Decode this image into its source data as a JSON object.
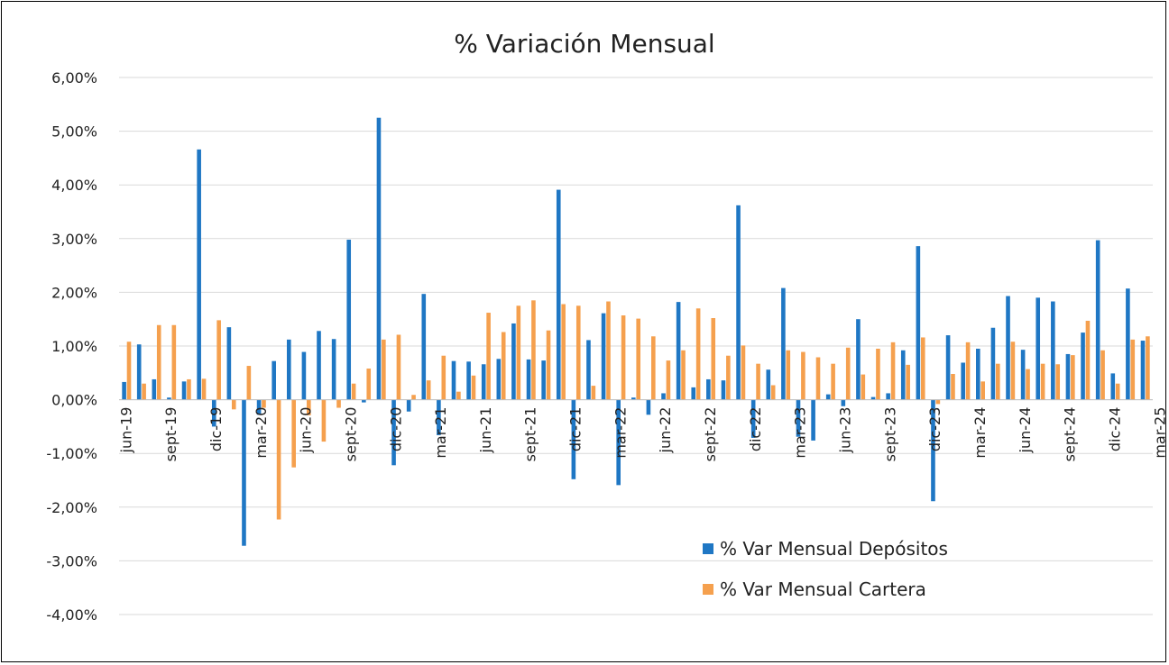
{
  "chart_data": {
    "type": "bar",
    "title": "% Variación Mensual",
    "xlabel": "",
    "ylabel": "",
    "ylim": [
      -4,
      6
    ],
    "yticks": [
      "6,00%",
      "5,00%",
      "4,00%",
      "3,00%",
      "2,00%",
      "1,00%",
      "0,00%",
      "-1,00%",
      "-2,00%",
      "-3,00%",
      "-4,00%"
    ],
    "xtick_labels": [
      "jun-19",
      "sept-19",
      "dic-19",
      "mar-20",
      "jun-20",
      "sept-20",
      "dic-20",
      "mar-21",
      "jun-21",
      "sept-21",
      "dic-21",
      "mar-22",
      "jun-22",
      "sept-22",
      "dic-22",
      "mar-23",
      "jun-23",
      "sept-23",
      "dic-23",
      "mar-24",
      "jun-24",
      "sept-24",
      "dic-24",
      "mar-25"
    ],
    "legend_position": "bottom-right",
    "grid": true,
    "colors": {
      "depositos": "#1f77c4",
      "cartera": "#f5a04e"
    },
    "series": [
      {
        "name": "% Var Mensual Depósitos",
        "values": [
          0.33,
          1.03,
          0.38,
          0.04,
          0.34,
          4.66,
          -0.5,
          1.35,
          -2.72,
          -0.28,
          0.72,
          1.12,
          0.89,
          1.28,
          1.13,
          2.98,
          -0.05,
          5.25,
          -1.22,
          -0.22,
          1.97,
          -0.66,
          0.72,
          0.71,
          0.66,
          0.76,
          1.42,
          0.75,
          0.73,
          3.91,
          -1.48,
          1.11,
          1.61,
          -1.59,
          0.04,
          -0.28,
          0.12,
          1.82,
          0.23,
          0.38,
          0.36,
          3.62,
          -0.71,
          0.56,
          2.08,
          -0.69,
          -0.76,
          0.1,
          -0.12,
          1.5,
          0.05,
          0.12,
          0.92,
          2.86,
          -1.89,
          1.2,
          0.69,
          0.95,
          1.34,
          1.93,
          0.93,
          1.9,
          1.83,
          0.85,
          1.25,
          2.97,
          0.49,
          2.07,
          1.1
        ]
      },
      {
        "name": "% Var Mensual Cartera",
        "values": [
          1.08,
          0.3,
          1.39,
          1.39,
          0.38,
          0.39,
          1.48,
          -0.18,
          0.63,
          -0.15,
          -2.23,
          -1.26,
          -0.29,
          -0.78,
          -0.15,
          0.3,
          0.58,
          1.12,
          1.21,
          0.09,
          0.36,
          0.82,
          0.15,
          0.45,
          1.62,
          1.26,
          1.75,
          1.85,
          1.29,
          1.78,
          1.75,
          0.26,
          1.83,
          1.57,
          1.51,
          1.18,
          0.73,
          0.92,
          1.7,
          1.52,
          0.82,
          1.01,
          0.67,
          0.27,
          0.92,
          0.89,
          0.79,
          0.67,
          0.97,
          0.47,
          0.95,
          1.07,
          0.65,
          1.16,
          -0.08,
          0.48,
          1.07,
          0.34,
          0.67,
          1.08,
          0.57,
          0.67,
          0.66,
          0.83,
          1.47,
          0.92,
          0.3,
          1.12,
          1.18
        ]
      }
    ]
  }
}
